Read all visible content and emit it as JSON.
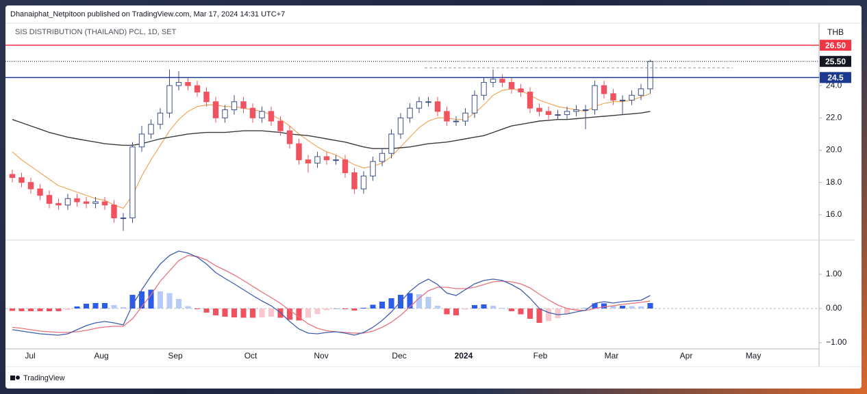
{
  "header": {
    "publisher": "Dhanaiphat_Netpitoon published on TradingView.com, Mar 17, 2024 14:31 UTC+7",
    "footer": "TradingView"
  },
  "chart_data": [
    {
      "type": "candlestick",
      "title": "SIS DISTRIBUTION (THAILAND) PCL, 1D, SET",
      "currency": "THB",
      "up_color": "#3d4f86",
      "down_color": "#f0525f",
      "xlim": [
        0,
        87
      ],
      "ylim": [
        14.47,
        27.82
      ],
      "yticks": [
        {
          "value": 16,
          "label": "16.0"
        },
        {
          "value": 18,
          "label": "18.0"
        },
        {
          "value": 20,
          "label": "20.0"
        },
        {
          "value": 22,
          "label": "22.0"
        },
        {
          "value": 24,
          "label": "24.0"
        }
      ],
      "open": [
        18.5,
        18.3,
        18.0,
        17.6,
        17.2,
        16.7,
        16.6,
        17.0,
        16.8,
        16.7,
        16.8,
        16.6,
        15.8,
        15.8,
        20.2,
        21.0,
        21.6,
        22.3,
        24.0,
        24.2,
        24.0,
        23.6,
        23.0,
        22.0,
        22.5,
        23.0,
        22.6,
        22.0,
        22.4,
        21.8,
        21.2,
        20.4,
        19.4,
        19.2,
        19.6,
        19.4,
        19.4,
        18.6,
        17.6,
        18.4,
        19.3,
        19.8,
        21.0,
        22.0,
        22.6,
        23.0,
        23.0,
        22.4,
        21.8,
        21.8,
        22.3,
        23.4,
        24.2,
        24.4,
        24.2,
        23.8,
        23.6,
        22.6,
        22.4,
        22.2,
        22.2,
        22.4,
        22.5,
        22.5,
        24.0,
        23.5,
        23.1,
        23.1,
        23.4,
        23.8
      ],
      "high": [
        18.8,
        18.6,
        18.3,
        17.9,
        17.5,
        17.0,
        17.3,
        17.3,
        17.1,
        17.1,
        17.1,
        16.9,
        16.1,
        20.5,
        21.5,
        21.9,
        22.6,
        25.0,
        24.9,
        24.5,
        24.3,
        23.9,
        23.3,
        22.8,
        23.4,
        23.3,
        22.9,
        22.7,
        22.7,
        22.1,
        21.5,
        20.7,
        19.7,
        19.9,
        19.9,
        19.7,
        19.7,
        18.9,
        18.7,
        19.6,
        20.1,
        21.3,
        22.3,
        22.9,
        23.3,
        23.3,
        23.3,
        22.7,
        22.1,
        22.6,
        23.7,
        24.5,
        25.0,
        24.7,
        24.5,
        24.1,
        23.9,
        22.9,
        22.7,
        22.5,
        22.7,
        22.8,
        22.8,
        24.3,
        24.3,
        23.8,
        23.4,
        23.7,
        24.1,
        25.6
      ],
      "low": [
        18.0,
        17.7,
        17.3,
        16.9,
        16.4,
        16.3,
        16.3,
        16.5,
        16.4,
        16.4,
        16.3,
        15.5,
        15.0,
        15.5,
        19.9,
        20.7,
        21.3,
        22.0,
        23.7,
        23.7,
        23.3,
        22.7,
        21.7,
        21.7,
        22.2,
        22.3,
        21.7,
        21.7,
        21.5,
        20.9,
        20.1,
        19.1,
        18.6,
        18.9,
        19.1,
        19.1,
        18.3,
        17.3,
        17.3,
        18.1,
        19.0,
        19.5,
        20.7,
        21.7,
        22.3,
        22.7,
        22.1,
        21.5,
        21.5,
        21.5,
        22.0,
        23.1,
        23.9,
        23.9,
        23.5,
        23.3,
        22.3,
        22.1,
        21.9,
        21.9,
        21.9,
        22.1,
        21.3,
        22.2,
        23.2,
        22.8,
        22.2,
        22.8,
        23.1,
        23.5
      ],
      "close": [
        18.3,
        18.0,
        17.6,
        17.2,
        16.7,
        16.6,
        17.0,
        16.8,
        16.7,
        16.8,
        16.6,
        15.8,
        15.8,
        20.2,
        21.0,
        21.6,
        22.3,
        24.0,
        24.2,
        24.0,
        23.6,
        23.0,
        22.0,
        22.5,
        23.0,
        22.6,
        22.0,
        22.4,
        21.8,
        21.2,
        20.4,
        19.4,
        19.2,
        19.6,
        19.4,
        19.4,
        18.6,
        17.6,
        18.4,
        19.3,
        19.8,
        21.0,
        22.0,
        22.6,
        23.0,
        23.0,
        22.4,
        21.8,
        21.8,
        22.3,
        23.4,
        24.2,
        24.4,
        24.2,
        23.8,
        23.6,
        22.6,
        22.4,
        22.2,
        22.2,
        22.4,
        22.5,
        22.5,
        24.0,
        23.5,
        23.1,
        23.1,
        23.4,
        23.8,
        25.5
      ],
      "overlays": [
        {
          "color": "#f2a04a",
          "values": [
            19.9,
            19.4,
            19.0,
            18.6,
            18.2,
            17.8,
            17.6,
            17.4,
            17.2,
            17.0,
            16.9,
            16.6,
            16.4,
            17.2,
            18.4,
            19.4,
            20.3,
            21.2,
            21.9,
            22.4,
            22.7,
            22.8,
            22.8,
            22.7,
            22.7,
            22.6,
            22.5,
            22.4,
            22.2,
            21.9,
            21.5,
            21.0,
            20.6,
            20.2,
            19.9,
            19.7,
            19.4,
            19.1,
            18.9,
            19.0,
            19.2,
            19.6,
            20.2,
            20.8,
            21.4,
            21.8,
            22.0,
            22.0,
            21.9,
            21.9,
            22.3,
            22.8,
            23.4,
            23.7,
            23.8,
            23.7,
            23.4,
            23.1,
            22.9,
            22.7,
            22.6,
            22.5,
            22.4,
            22.7,
            22.9,
            23.0,
            23.0,
            23.1,
            23.3,
            23.5
          ]
        },
        {
          "color": "#3a3a3a",
          "values": [
            21.9,
            21.7,
            21.5,
            21.3,
            21.1,
            20.95,
            20.8,
            20.7,
            20.6,
            20.5,
            20.4,
            20.35,
            20.3,
            20.3,
            20.4,
            20.55,
            20.7,
            20.8,
            20.9,
            21.0,
            21.05,
            21.1,
            21.1,
            21.1,
            21.15,
            21.2,
            21.2,
            21.2,
            21.15,
            21.1,
            21.0,
            20.95,
            20.9,
            20.8,
            20.7,
            20.6,
            20.5,
            20.35,
            20.2,
            20.1,
            20.1,
            20.1,
            20.15,
            20.2,
            20.3,
            20.4,
            20.45,
            20.5,
            20.6,
            20.7,
            20.8,
            20.9,
            21.1,
            21.3,
            21.5,
            21.6,
            21.7,
            21.8,
            21.85,
            21.9,
            21.9,
            21.95,
            22.0,
            22.05,
            22.1,
            22.15,
            22.2,
            22.25,
            22.3,
            22.4
          ]
        }
      ],
      "hlines": [
        {
          "value": 26.5,
          "label": "26.50",
          "color": "#f23645",
          "style": "solid"
        },
        {
          "value": 25.5,
          "label": "25.50",
          "color": "#131722",
          "style": "dotted"
        },
        {
          "value": 24.5,
          "color": "#1b3a8f",
          "style": "solid"
        }
      ],
      "dashed_segment": {
        "value": 25.1,
        "color": "#9598a1",
        "xrange": [
          44.6,
          77.9
        ]
      }
    },
    {
      "type": "macd",
      "xlim": [
        0,
        87
      ],
      "ylim": [
        -1.18,
        1.98
      ],
      "yticks": [
        {
          "value": 1,
          "label": "1.00"
        },
        {
          "value": 0,
          "label": "0.00"
        },
        {
          "value": -1,
          "label": "−1.00"
        }
      ],
      "xticks": [
        {
          "value": 1.93,
          "label": "Jul"
        },
        {
          "value": 9.63,
          "label": "Aug"
        },
        {
          "value": 17.63,
          "label": "Sep"
        },
        {
          "value": 25.78,
          "label": "Oct"
        },
        {
          "value": 33.41,
          "label": "Nov"
        },
        {
          "value": 41.85,
          "label": "Dec"
        },
        {
          "value": 48.81,
          "label": "2024"
        },
        {
          "value": 57.11,
          "label": "Feb"
        },
        {
          "value": 64.81,
          "label": "Mar"
        },
        {
          "value": 72.89,
          "label": "Apr"
        },
        {
          "value": 80.15,
          "label": "May"
        }
      ],
      "macd": {
        "color": "#3f5db0",
        "values": [
          -0.62,
          -0.66,
          -0.7,
          -0.74,
          -0.76,
          -0.78,
          -0.74,
          -0.62,
          -0.5,
          -0.42,
          -0.38,
          -0.42,
          -0.48,
          0.1,
          0.55,
          0.95,
          1.3,
          1.55,
          1.68,
          1.62,
          1.5,
          1.3,
          1.05,
          0.88,
          0.72,
          0.55,
          0.38,
          0.22,
          0.08,
          -0.12,
          -0.38,
          -0.6,
          -0.72,
          -0.74,
          -0.7,
          -0.68,
          -0.72,
          -0.78,
          -0.7,
          -0.55,
          -0.35,
          -0.1,
          0.2,
          0.5,
          0.72,
          0.86,
          0.7,
          0.45,
          0.38,
          0.55,
          0.72,
          0.82,
          0.86,
          0.82,
          0.7,
          0.55,
          0.3,
          0.0,
          -0.12,
          -0.18,
          -0.16,
          -0.1,
          -0.05,
          0.15,
          0.2,
          0.16,
          0.2,
          0.22,
          0.24,
          0.38
        ]
      },
      "signal": {
        "color": "#e8727a",
        "values": [
          -0.55,
          -0.58,
          -0.62,
          -0.66,
          -0.68,
          -0.7,
          -0.7,
          -0.68,
          -0.64,
          -0.58,
          -0.54,
          -0.52,
          -0.52,
          -0.3,
          0.05,
          0.4,
          0.8,
          1.1,
          1.4,
          1.55,
          1.52,
          1.42,
          1.25,
          1.12,
          0.98,
          0.82,
          0.65,
          0.48,
          0.32,
          0.15,
          -0.05,
          -0.25,
          -0.45,
          -0.58,
          -0.65,
          -0.68,
          -0.7,
          -0.72,
          -0.72,
          -0.66,
          -0.55,
          -0.4,
          -0.2,
          0.05,
          0.3,
          0.52,
          0.62,
          0.62,
          0.58,
          0.58,
          0.62,
          0.7,
          0.78,
          0.8,
          0.78,
          0.72,
          0.6,
          0.42,
          0.25,
          0.1,
          0.0,
          -0.05,
          -0.06,
          0.0,
          0.05,
          0.08,
          0.12,
          0.15,
          0.18,
          0.22
        ]
      },
      "histogram": {
        "colors": {
          "pos_up": "#2d5ce8",
          "pos_down": "#b6cbf5",
          "neg_down": "#f0525f",
          "neg_up": "#f8c6cc"
        },
        "values": [
          -0.07,
          -0.08,
          -0.08,
          -0.08,
          -0.08,
          -0.08,
          -0.04,
          0.06,
          0.14,
          0.16,
          0.16,
          0.1,
          0.04,
          0.4,
          0.5,
          0.55,
          0.5,
          0.45,
          0.28,
          0.07,
          -0.02,
          -0.12,
          -0.2,
          -0.24,
          -0.26,
          -0.27,
          -0.27,
          -0.26,
          -0.24,
          -0.27,
          -0.33,
          -0.35,
          -0.27,
          -0.16,
          -0.05,
          0.0,
          -0.02,
          -0.06,
          0.02,
          0.11,
          0.2,
          0.3,
          0.4,
          0.45,
          0.42,
          0.34,
          0.08,
          -0.17,
          -0.2,
          -0.03,
          0.1,
          0.12,
          0.08,
          0.02,
          -0.08,
          -0.17,
          -0.3,
          -0.42,
          -0.37,
          -0.28,
          -0.16,
          -0.05,
          0.01,
          0.15,
          0.15,
          0.08,
          0.08,
          0.07,
          0.06,
          0.16
        ]
      }
    }
  ]
}
